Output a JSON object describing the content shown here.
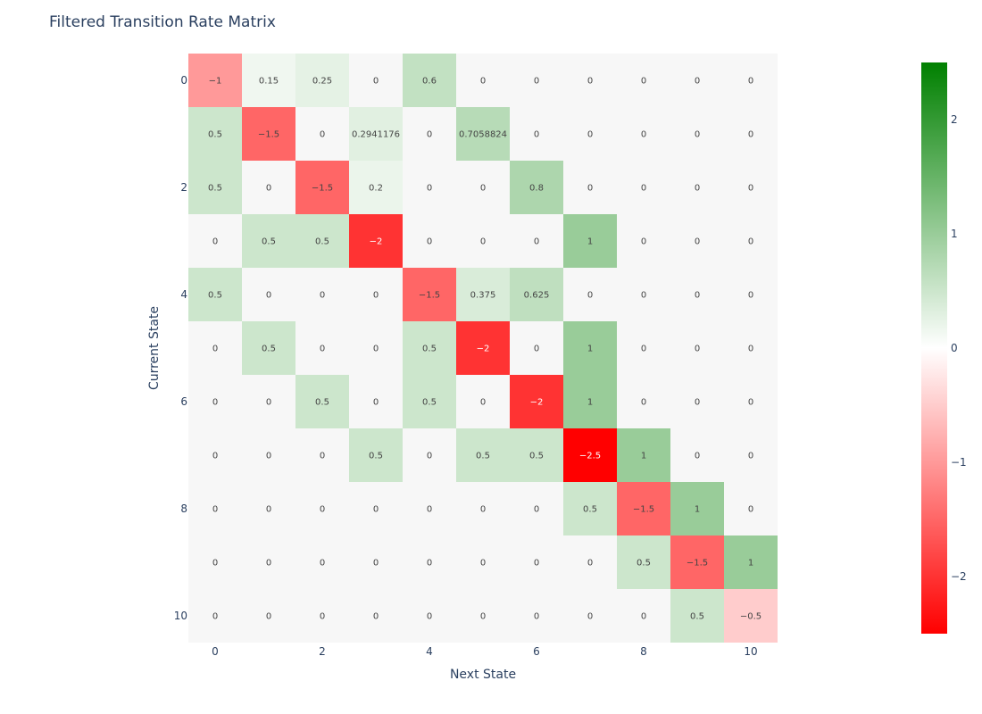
{
  "chart_data": {
    "type": "heatmap",
    "title": "Filtered Transition Rate Matrix",
    "xlabel": "Next State",
    "ylabel": "Current State",
    "x": [
      0,
      1,
      2,
      3,
      4,
      5,
      6,
      7,
      8,
      9,
      10
    ],
    "y": [
      0,
      1,
      2,
      3,
      4,
      5,
      6,
      7,
      8,
      9,
      10
    ],
    "x_tick_labels": [
      "0",
      "2",
      "4",
      "6",
      "8",
      "10"
    ],
    "y_tick_labels": [
      "0",
      "2",
      "4",
      "6",
      "8",
      "10"
    ],
    "z": [
      [
        -1,
        0.15,
        0.25,
        0,
        0.6,
        0,
        0,
        0,
        0,
        0,
        0
      ],
      [
        0.5,
        -1.5,
        0,
        0.2941176,
        0,
        0.7058824,
        0,
        0,
        0,
        0,
        0
      ],
      [
        0.5,
        0,
        -1.5,
        0.2,
        0,
        0,
        0.8,
        0,
        0,
        0,
        0
      ],
      [
        0,
        0.5,
        0.5,
        -2,
        0,
        0,
        0,
        1,
        0,
        0,
        0
      ],
      [
        0.5,
        0,
        0,
        0,
        -1.5,
        0.375,
        0.625,
        0,
        0,
        0,
        0
      ],
      [
        0,
        0.5,
        0,
        0,
        0.5,
        -2,
        0,
        1,
        0,
        0,
        0
      ],
      [
        0,
        0,
        0.5,
        0,
        0.5,
        0,
        -2,
        1,
        0,
        0,
        0
      ],
      [
        0,
        0,
        0,
        0.5,
        0,
        0.5,
        0.5,
        -2.5,
        1,
        0,
        0
      ],
      [
        0,
        0,
        0,
        0,
        0,
        0,
        0,
        0.5,
        -1.5,
        1,
        0
      ],
      [
        0,
        0,
        0,
        0,
        0,
        0,
        0,
        0,
        0.5,
        -1.5,
        1
      ],
      [
        0,
        0,
        0,
        0,
        0,
        0,
        0,
        0,
        0,
        0.5,
        -0.5
      ]
    ],
    "zmin": -2.5,
    "zmax": 2.5,
    "zero_color": "#f7f7f7",
    "colorscale": [
      [
        0.0,
        "#ff0000"
      ],
      [
        0.5,
        "#ffffff"
      ],
      [
        1.0,
        "#008000"
      ]
    ],
    "colorbar_ticks": [
      "2",
      "1",
      "0",
      "−1",
      "−2"
    ],
    "colorbar_tick_values": [
      2,
      1,
      0,
      -1,
      -2
    ]
  }
}
